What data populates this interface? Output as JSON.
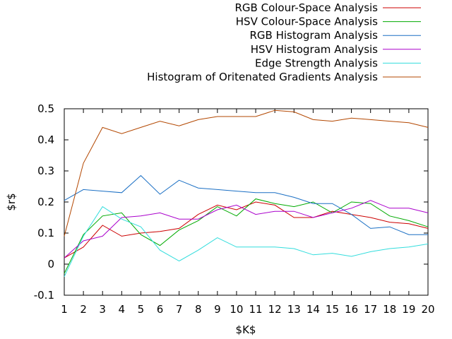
{
  "chart_data": {
    "type": "line",
    "xlabel": "$K$",
    "ylabel": "$r$",
    "xlim": [
      1,
      20
    ],
    "ylim": [
      -0.1,
      0.5
    ],
    "x": [
      1,
      2,
      3,
      4,
      5,
      6,
      7,
      8,
      9,
      10,
      11,
      12,
      13,
      14,
      15,
      16,
      17,
      18,
      19,
      20
    ],
    "yticks": [
      -0.1,
      0,
      0.1,
      0.2,
      0.3,
      0.4,
      0.5
    ],
    "ytick_labels": [
      "-0.1",
      "0",
      "0.1",
      "0.2",
      "0.3",
      "0.4",
      "0.5"
    ],
    "xtick_labels": [
      "1",
      "2",
      "3",
      "4",
      "5",
      "6",
      "7",
      "8",
      "9",
      "10",
      "11",
      "12",
      "13",
      "14",
      "15",
      "16",
      "17",
      "18",
      "19",
      "20"
    ],
    "legend_position": "top-right",
    "grid": false,
    "series": [
      {
        "name": "RGB Colour-Space Analysis",
        "color": "#cc0000",
        "values": [
          0.02,
          0.055,
          0.125,
          0.09,
          0.1,
          0.105,
          0.115,
          0.16,
          0.19,
          0.175,
          0.2,
          0.19,
          0.15,
          0.15,
          0.17,
          0.16,
          0.15,
          0.135,
          0.13,
          0.115
        ]
      },
      {
        "name": "HSV Colour-Space Analysis",
        "color": "#00aa00",
        "values": [
          -0.03,
          0.095,
          0.155,
          0.165,
          0.095,
          0.06,
          0.11,
          0.14,
          0.185,
          0.155,
          0.21,
          0.195,
          0.185,
          0.2,
          0.165,
          0.2,
          0.195,
          0.155,
          0.14,
          0.12
        ]
      },
      {
        "name": "RGB Histogram Analysis",
        "color": "#1a6fc4",
        "values": [
          0.205,
          0.24,
          0.235,
          0.23,
          0.285,
          0.225,
          0.27,
          0.245,
          0.24,
          0.235,
          0.23,
          0.23,
          0.215,
          0.195,
          0.195,
          0.16,
          0.115,
          0.12,
          0.095,
          0.095
        ]
      },
      {
        "name": "HSV Histogram Analysis",
        "color": "#aa00cc",
        "values": [
          0.02,
          0.075,
          0.09,
          0.15,
          0.155,
          0.165,
          0.145,
          0.145,
          0.175,
          0.19,
          0.16,
          0.17,
          0.17,
          0.15,
          0.165,
          0.18,
          0.205,
          0.18,
          0.18,
          0.165
        ]
      },
      {
        "name": "Edge Strength Analysis",
        "color": "#33dddd",
        "values": [
          -0.04,
          0.09,
          0.185,
          0.145,
          0.12,
          0.045,
          0.01,
          0.045,
          0.085,
          0.055,
          0.055,
          0.055,
          0.05,
          0.03,
          0.035,
          0.025,
          0.04,
          0.05,
          0.055,
          0.065
        ]
      },
      {
        "name": "Histogram of Oritenated Gradients Analysis",
        "color": "#b34700",
        "values": [
          0.09,
          0.325,
          0.44,
          0.42,
          0.44,
          0.46,
          0.445,
          0.465,
          0.475,
          0.475,
          0.475,
          0.495,
          0.49,
          0.465,
          0.46,
          0.47,
          0.465,
          0.46,
          0.455,
          0.44
        ]
      }
    ]
  }
}
